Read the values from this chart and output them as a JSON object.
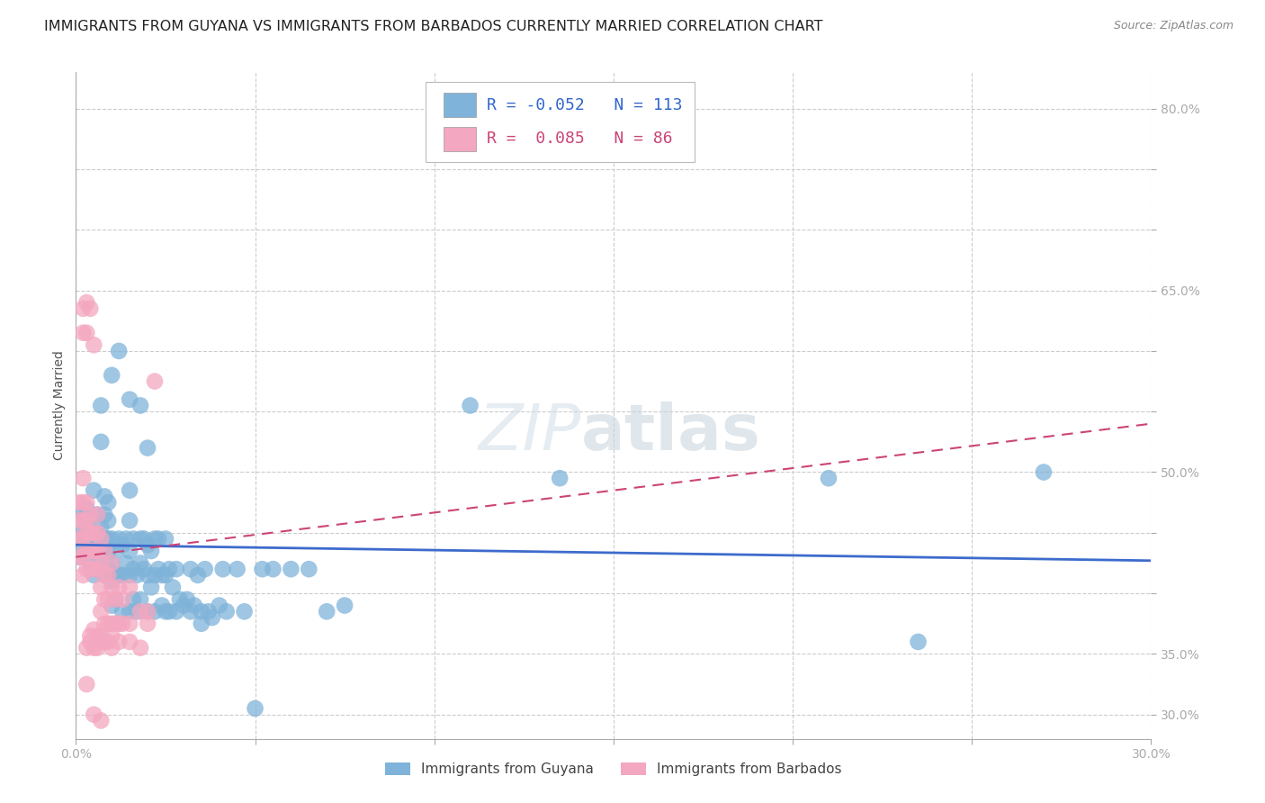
{
  "title": "IMMIGRANTS FROM GUYANA VS IMMIGRANTS FROM BARBADOS CURRENTLY MARRIED CORRELATION CHART",
  "source": "Source: ZipAtlas.com",
  "ylabel": "Currently Married",
  "xlim": [
    0.0,
    0.3
  ],
  "ylim": [
    0.28,
    0.83
  ],
  "xticks": [
    0.0,
    0.05,
    0.1,
    0.15,
    0.2,
    0.25,
    0.3
  ],
  "xtick_labels": [
    "0.0%",
    "",
    "",
    "",
    "",
    "",
    "30.0%"
  ],
  "ytick_vals": [
    0.3,
    0.35,
    0.4,
    0.45,
    0.5,
    0.55,
    0.6,
    0.65,
    0.7,
    0.75,
    0.8
  ],
  "ytick_labels_right": [
    "30.0%",
    "35.0%",
    "",
    "",
    "50.0%",
    "",
    "",
    "65.0%",
    "",
    "",
    "80.0%"
  ],
  "blue_color": "#7fb3d9",
  "pink_color": "#f4a7c0",
  "trend_blue_color": "#3d6bcc",
  "trend_pink_color": "#cc4477",
  "grid_color": "#cccccc",
  "background_color": "#ffffff",
  "watermark": "ZIPatlas",
  "legend_r_blue": "-0.052",
  "legend_n_blue": "113",
  "legend_r_pink": "0.085",
  "legend_n_pink": "86",
  "label_blue": "Immigrants from Guyana",
  "label_pink": "Immigrants from Barbados",
  "blue_trend_x": [
    0.0,
    0.3
  ],
  "blue_trend_y": [
    0.44,
    0.427
  ],
  "pink_trend_x": [
    0.0,
    0.3
  ],
  "pink_trend_y": [
    0.43,
    0.54
  ],
  "blue_dots": [
    [
      0.001,
      0.43
    ],
    [
      0.001,
      0.445
    ],
    [
      0.002,
      0.435
    ],
    [
      0.002,
      0.45
    ],
    [
      0.002,
      0.465
    ],
    [
      0.003,
      0.44
    ],
    [
      0.003,
      0.455
    ],
    [
      0.003,
      0.47
    ],
    [
      0.004,
      0.425
    ],
    [
      0.004,
      0.445
    ],
    [
      0.005,
      0.415
    ],
    [
      0.005,
      0.435
    ],
    [
      0.005,
      0.45
    ],
    [
      0.005,
      0.485
    ],
    [
      0.006,
      0.42
    ],
    [
      0.006,
      0.435
    ],
    [
      0.006,
      0.45
    ],
    [
      0.006,
      0.465
    ],
    [
      0.007,
      0.425
    ],
    [
      0.007,
      0.44
    ],
    [
      0.007,
      0.455
    ],
    [
      0.007,
      0.525
    ],
    [
      0.007,
      0.555
    ],
    [
      0.008,
      0.415
    ],
    [
      0.008,
      0.435
    ],
    [
      0.008,
      0.445
    ],
    [
      0.008,
      0.465
    ],
    [
      0.008,
      0.48
    ],
    [
      0.009,
      0.42
    ],
    [
      0.009,
      0.435
    ],
    [
      0.009,
      0.445
    ],
    [
      0.009,
      0.46
    ],
    [
      0.009,
      0.475
    ],
    [
      0.01,
      0.39
    ],
    [
      0.01,
      0.41
    ],
    [
      0.01,
      0.425
    ],
    [
      0.01,
      0.445
    ],
    [
      0.01,
      0.58
    ],
    [
      0.011,
      0.395
    ],
    [
      0.011,
      0.415
    ],
    [
      0.011,
      0.435
    ],
    [
      0.012,
      0.415
    ],
    [
      0.012,
      0.445
    ],
    [
      0.012,
      0.6
    ],
    [
      0.013,
      0.385
    ],
    [
      0.013,
      0.415
    ],
    [
      0.013,
      0.44
    ],
    [
      0.014,
      0.425
    ],
    [
      0.014,
      0.445
    ],
    [
      0.015,
      0.385
    ],
    [
      0.015,
      0.415
    ],
    [
      0.015,
      0.435
    ],
    [
      0.015,
      0.46
    ],
    [
      0.015,
      0.485
    ],
    [
      0.015,
      0.56
    ],
    [
      0.016,
      0.395
    ],
    [
      0.016,
      0.42
    ],
    [
      0.016,
      0.445
    ],
    [
      0.017,
      0.385
    ],
    [
      0.017,
      0.415
    ],
    [
      0.018,
      0.395
    ],
    [
      0.018,
      0.425
    ],
    [
      0.018,
      0.445
    ],
    [
      0.018,
      0.555
    ],
    [
      0.019,
      0.42
    ],
    [
      0.019,
      0.445
    ],
    [
      0.02,
      0.385
    ],
    [
      0.02,
      0.415
    ],
    [
      0.02,
      0.44
    ],
    [
      0.02,
      0.52
    ],
    [
      0.021,
      0.405
    ],
    [
      0.021,
      0.435
    ],
    [
      0.022,
      0.385
    ],
    [
      0.022,
      0.415
    ],
    [
      0.022,
      0.445
    ],
    [
      0.023,
      0.42
    ],
    [
      0.023,
      0.445
    ],
    [
      0.024,
      0.39
    ],
    [
      0.024,
      0.415
    ],
    [
      0.025,
      0.385
    ],
    [
      0.025,
      0.415
    ],
    [
      0.025,
      0.445
    ],
    [
      0.026,
      0.385
    ],
    [
      0.026,
      0.42
    ],
    [
      0.027,
      0.405
    ],
    [
      0.028,
      0.385
    ],
    [
      0.028,
      0.42
    ],
    [
      0.029,
      0.395
    ],
    [
      0.03,
      0.39
    ],
    [
      0.031,
      0.395
    ],
    [
      0.032,
      0.385
    ],
    [
      0.032,
      0.42
    ],
    [
      0.033,
      0.39
    ],
    [
      0.034,
      0.415
    ],
    [
      0.035,
      0.375
    ],
    [
      0.035,
      0.385
    ],
    [
      0.036,
      0.42
    ],
    [
      0.037,
      0.385
    ],
    [
      0.038,
      0.38
    ],
    [
      0.04,
      0.39
    ],
    [
      0.041,
      0.42
    ],
    [
      0.042,
      0.385
    ],
    [
      0.045,
      0.42
    ],
    [
      0.047,
      0.385
    ],
    [
      0.05,
      0.305
    ],
    [
      0.052,
      0.42
    ],
    [
      0.055,
      0.42
    ],
    [
      0.06,
      0.42
    ],
    [
      0.065,
      0.42
    ],
    [
      0.07,
      0.385
    ],
    [
      0.075,
      0.39
    ],
    [
      0.11,
      0.555
    ],
    [
      0.135,
      0.495
    ],
    [
      0.21,
      0.495
    ],
    [
      0.235,
      0.36
    ],
    [
      0.27,
      0.5
    ]
  ],
  "pink_dots": [
    [
      0.001,
      0.43
    ],
    [
      0.001,
      0.445
    ],
    [
      0.001,
      0.46
    ],
    [
      0.001,
      0.475
    ],
    [
      0.002,
      0.415
    ],
    [
      0.002,
      0.43
    ],
    [
      0.002,
      0.445
    ],
    [
      0.002,
      0.46
    ],
    [
      0.002,
      0.475
    ],
    [
      0.002,
      0.495
    ],
    [
      0.002,
      0.615
    ],
    [
      0.002,
      0.635
    ],
    [
      0.003,
      0.42
    ],
    [
      0.003,
      0.435
    ],
    [
      0.003,
      0.45
    ],
    [
      0.003,
      0.46
    ],
    [
      0.003,
      0.475
    ],
    [
      0.003,
      0.615
    ],
    [
      0.003,
      0.64
    ],
    [
      0.003,
      0.355
    ],
    [
      0.003,
      0.325
    ],
    [
      0.004,
      0.42
    ],
    [
      0.004,
      0.435
    ],
    [
      0.004,
      0.45
    ],
    [
      0.004,
      0.465
    ],
    [
      0.004,
      0.635
    ],
    [
      0.004,
      0.36
    ],
    [
      0.004,
      0.365
    ],
    [
      0.005,
      0.42
    ],
    [
      0.005,
      0.435
    ],
    [
      0.005,
      0.45
    ],
    [
      0.005,
      0.605
    ],
    [
      0.005,
      0.355
    ],
    [
      0.005,
      0.37
    ],
    [
      0.005,
      0.3
    ],
    [
      0.006,
      0.42
    ],
    [
      0.006,
      0.435
    ],
    [
      0.006,
      0.45
    ],
    [
      0.006,
      0.465
    ],
    [
      0.006,
      0.355
    ],
    [
      0.006,
      0.365
    ],
    [
      0.007,
      0.385
    ],
    [
      0.007,
      0.405
    ],
    [
      0.007,
      0.425
    ],
    [
      0.007,
      0.445
    ],
    [
      0.007,
      0.36
    ],
    [
      0.007,
      0.365
    ],
    [
      0.007,
      0.295
    ],
    [
      0.008,
      0.375
    ],
    [
      0.008,
      0.395
    ],
    [
      0.008,
      0.415
    ],
    [
      0.008,
      0.435
    ],
    [
      0.008,
      0.36
    ],
    [
      0.009,
      0.375
    ],
    [
      0.009,
      0.395
    ],
    [
      0.009,
      0.415
    ],
    [
      0.009,
      0.36
    ],
    [
      0.01,
      0.375
    ],
    [
      0.01,
      0.405
    ],
    [
      0.01,
      0.425
    ],
    [
      0.01,
      0.355
    ],
    [
      0.01,
      0.365
    ],
    [
      0.011,
      0.375
    ],
    [
      0.011,
      0.395
    ],
    [
      0.012,
      0.375
    ],
    [
      0.012,
      0.405
    ],
    [
      0.012,
      0.36
    ],
    [
      0.013,
      0.375
    ],
    [
      0.013,
      0.395
    ],
    [
      0.015,
      0.375
    ],
    [
      0.015,
      0.405
    ],
    [
      0.015,
      0.36
    ],
    [
      0.018,
      0.385
    ],
    [
      0.018,
      0.355
    ],
    [
      0.02,
      0.375
    ],
    [
      0.02,
      0.385
    ],
    [
      0.022,
      0.575
    ]
  ],
  "title_fontsize": 11.5,
  "axis_label_fontsize": 10,
  "tick_fontsize": 10,
  "legend_fontsize": 13,
  "source_fontsize": 9
}
